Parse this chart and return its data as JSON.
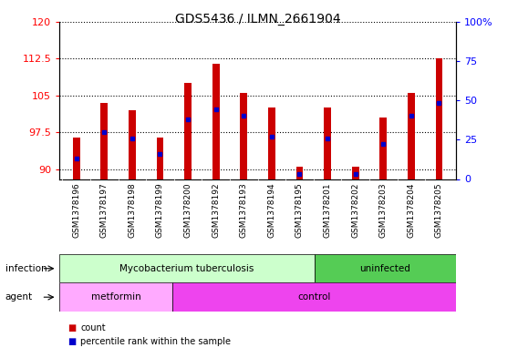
{
  "title": "GDS5436 / ILMN_2661904",
  "samples": [
    "GSM1378196",
    "GSM1378197",
    "GSM1378198",
    "GSM1378199",
    "GSM1378200",
    "GSM1378192",
    "GSM1378193",
    "GSM1378194",
    "GSM1378195",
    "GSM1378201",
    "GSM1378202",
    "GSM1378203",
    "GSM1378204",
    "GSM1378205"
  ],
  "bar_heights": [
    96.5,
    103.5,
    102.0,
    96.5,
    107.5,
    111.5,
    105.5,
    102.5,
    90.5,
    102.5,
    90.5,
    100.5,
    105.5,
    112.5
  ],
  "blue_values": [
    13,
    30,
    26,
    16,
    38,
    44,
    40,
    27,
    3,
    26,
    3,
    22,
    40,
    48
  ],
  "ylim_left": [
    88,
    120
  ],
  "ylim_right": [
    0,
    100
  ],
  "yticks_left": [
    90,
    97.5,
    105,
    112.5,
    120
  ],
  "yticks_right": [
    0,
    25,
    50,
    75,
    100
  ],
  "bar_color": "#cc0000",
  "blue_color": "#0000cc",
  "bar_bottom": 88,
  "infection_tb_color": "#ccffcc",
  "infection_un_color": "#55cc55",
  "agent_met_color": "#ffaaff",
  "agent_ctrl_color": "#ee44ee",
  "legend_count_color": "#cc0000",
  "legend_percentile_color": "#0000cc",
  "xlabel_bg": "#d8d8d8"
}
